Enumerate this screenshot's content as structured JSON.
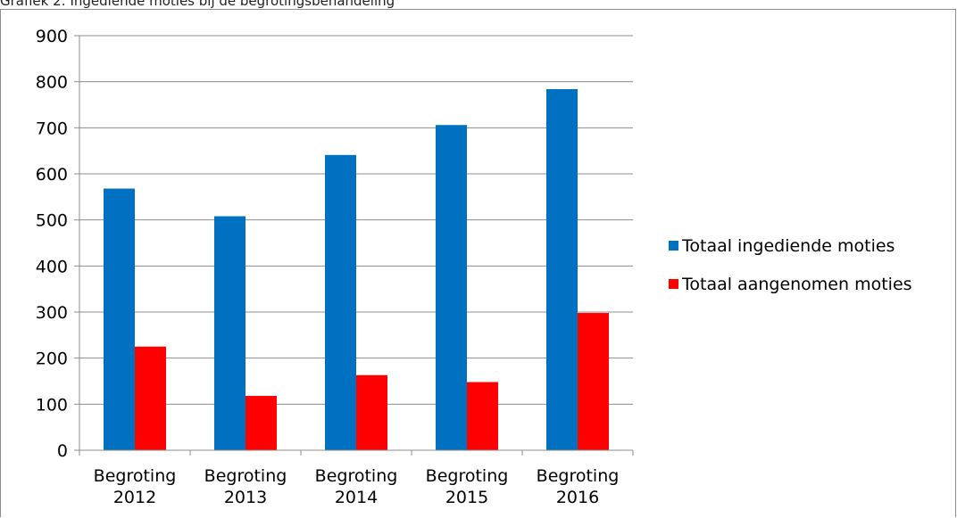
{
  "chart_data": {
    "type": "bar",
    "title": "Grafiek 2: Ingediende moties bij de begrotingsbehandeling",
    "categories": [
      [
        "Begroting",
        "2012"
      ],
      [
        "Begroting",
        "2013"
      ],
      [
        "Begroting",
        "2014"
      ],
      [
        "Begroting",
        "2015"
      ],
      [
        "Begroting",
        "2016"
      ]
    ],
    "series": [
      {
        "name": "Totaal ingediende moties",
        "color": "#0070c0",
        "values": [
          568,
          508,
          641,
          706,
          784
        ]
      },
      {
        "name": "Totaal aangenomen moties",
        "color": "#ff0000",
        "values": [
          225,
          118,
          163,
          148,
          298
        ]
      }
    ],
    "ylim": [
      0,
      900
    ],
    "yticks": [
      0,
      100,
      200,
      300,
      400,
      500,
      600,
      700,
      800,
      900
    ],
    "grid": true,
    "legend": "right"
  }
}
